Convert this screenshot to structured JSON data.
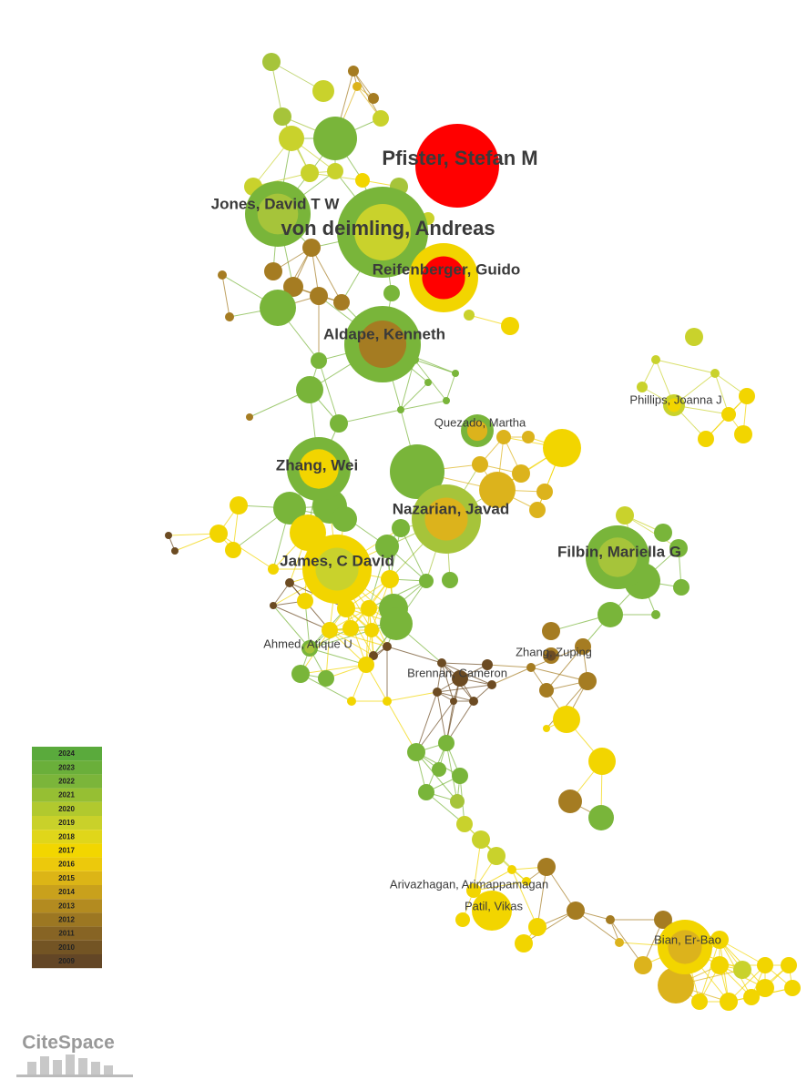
{
  "nodes": [
    {
      "label": "Pfister, Stefan M"
    },
    {
      "label": "Jones, David T W"
    },
    {
      "label": "von deimling, Andreas"
    },
    {
      "label": "Reifenberger, Guido"
    },
    {
      "label": "Aldape, Kenneth"
    },
    {
      "label": "Phillips, Joanna J"
    },
    {
      "label": "Quezado, Martha"
    },
    {
      "label": "Zhang, Wei"
    },
    {
      "label": "Nazarian, Javad"
    },
    {
      "label": "Filbin, Mariella G"
    },
    {
      "label": "James, C David"
    },
    {
      "label": "Ahmed, Atique U"
    },
    {
      "label": "Zhang, Zuping"
    },
    {
      "label": "Brennan, Cameron"
    },
    {
      "label": "Arivazhagan, Arimappamagan"
    },
    {
      "label": "Patil, Vikas"
    },
    {
      "label": "Bian, Er-Bao"
    }
  ],
  "legend": {
    "years": [
      "2024",
      "2023",
      "2022",
      "2021",
      "2020",
      "2019",
      "2018",
      "2017",
      "2016",
      "2015",
      "2014",
      "2013",
      "2012",
      "2011",
      "2010",
      "2009"
    ]
  },
  "logo": "CiteSpace"
}
